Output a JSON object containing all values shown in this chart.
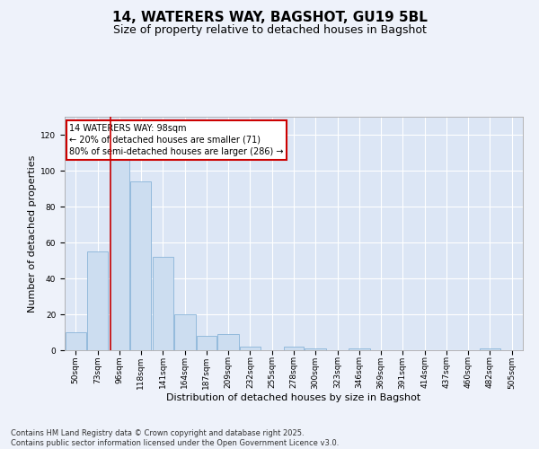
{
  "title1": "14, WATERERS WAY, BAGSHOT, GU19 5BL",
  "title2": "Size of property relative to detached houses in Bagshot",
  "xlabel": "Distribution of detached houses by size in Bagshot",
  "ylabel": "Number of detached properties",
  "annotation_title": "14 WATERERS WAY: 98sqm",
  "annotation_line1": "← 20% of detached houses are smaller (71)",
  "annotation_line2": "80% of semi-detached houses are larger (286) →",
  "footer_line1": "Contains HM Land Registry data © Crown copyright and database right 2025.",
  "footer_line2": "Contains public sector information licensed under the Open Government Licence v3.0.",
  "property_size": 98,
  "bar_color": "#ccddf0",
  "bar_edge_color": "#8ab4d8",
  "red_line_color": "#cc0000",
  "annotation_box_color": "#cc0000",
  "bg_color": "#dce6f5",
  "fig_bg_color": "#eef2fa",
  "categories": [
    "50sqm",
    "73sqm",
    "96sqm",
    "118sqm",
    "141sqm",
    "164sqm",
    "187sqm",
    "209sqm",
    "232sqm",
    "255sqm",
    "278sqm",
    "300sqm",
    "323sqm",
    "346sqm",
    "369sqm",
    "391sqm",
    "414sqm",
    "437sqm",
    "460sqm",
    "482sqm",
    "505sqm"
  ],
  "bin_edges": [
    50,
    73,
    96,
    118,
    141,
    164,
    187,
    209,
    232,
    255,
    278,
    300,
    323,
    346,
    369,
    391,
    414,
    437,
    460,
    482,
    505
  ],
  "values": [
    10,
    55,
    120,
    94,
    52,
    20,
    8,
    9,
    2,
    0,
    2,
    1,
    0,
    1,
    0,
    0,
    0,
    0,
    0,
    1
  ],
  "ylim": [
    0,
    130
  ],
  "yticks": [
    0,
    20,
    40,
    60,
    80,
    100,
    120
  ],
  "grid_color": "#ffffff",
  "title_fontsize": 11,
  "subtitle_fontsize": 9,
  "axis_label_fontsize": 8,
  "tick_fontsize": 6.5,
  "annotation_fontsize": 7,
  "footer_fontsize": 6
}
